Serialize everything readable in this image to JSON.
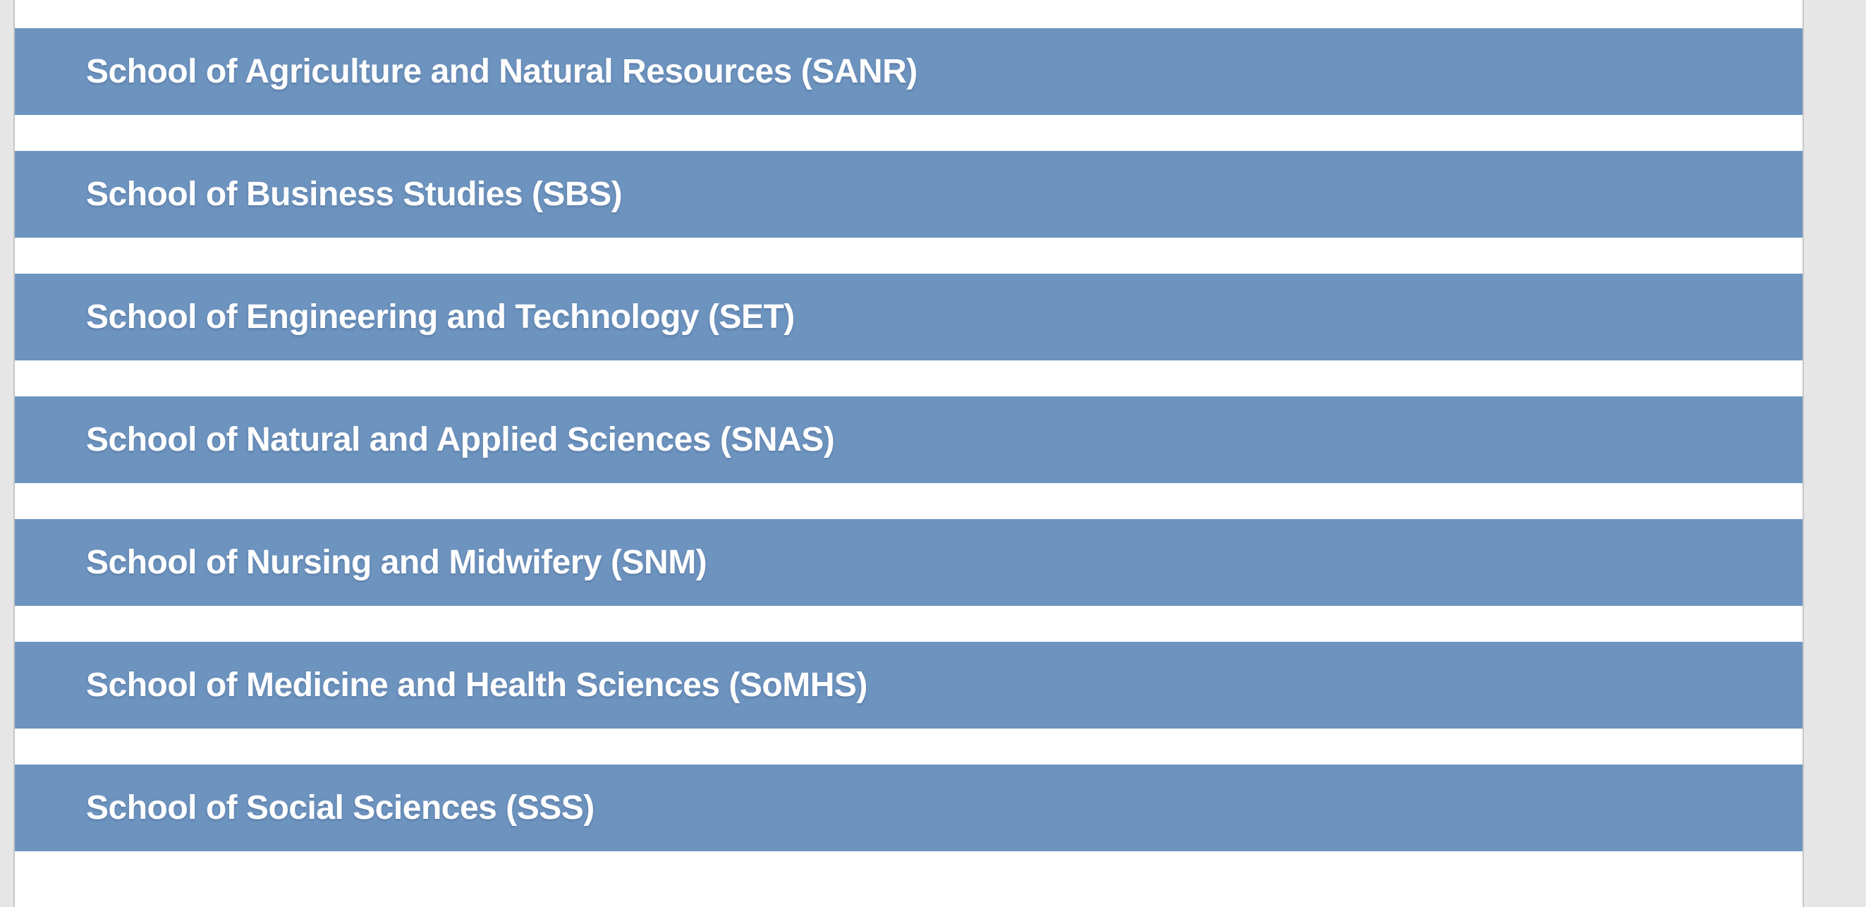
{
  "page": {
    "background_color": "#e6e6e6",
    "content_background": "#ffffff",
    "border_color": "#c6c6c6",
    "accent_color": "#6d93bf",
    "bar_text_color": "#ffffff"
  },
  "schools": {
    "items": [
      {
        "code": "SANR",
        "label": "School of Agriculture and Natural Resources (SANR)"
      },
      {
        "code": "SBS",
        "label": "School of Business Studies (SBS)"
      },
      {
        "code": "SET",
        "label": "School of Engineering and Technology (SET)"
      },
      {
        "code": "SNAS",
        "label": "School of Natural and Applied Sciences (SNAS)"
      },
      {
        "code": "SNM",
        "label": "School of Nursing and Midwifery (SNM)"
      },
      {
        "code": "SoMHS",
        "label": "School of Medicine and Health Sciences (SoMHS)"
      },
      {
        "code": "SSS",
        "label": "School of Social Sciences (SSS)"
      }
    ]
  }
}
